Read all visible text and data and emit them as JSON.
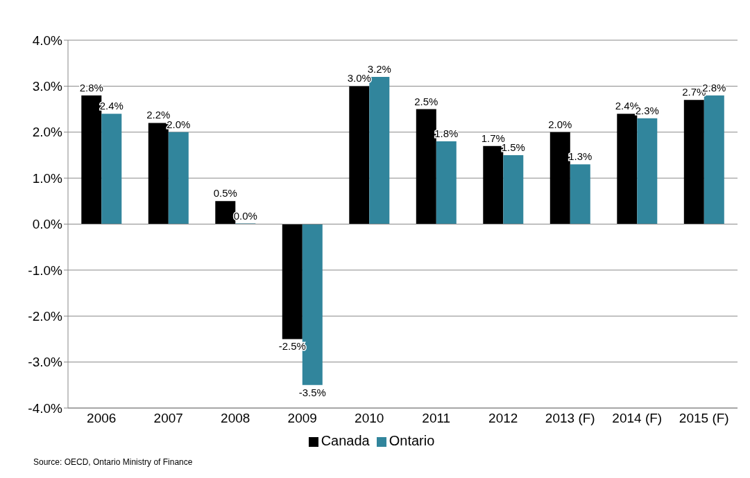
{
  "chart_data": {
    "type": "bar",
    "categories": [
      "2006",
      "2007",
      "2008",
      "2009",
      "2010",
      "2011",
      "2012",
      "2013 (F)",
      "2014 (F)",
      "2015 (F)"
    ],
    "series": [
      {
        "name": "Canada",
        "color": "#000000",
        "values": [
          2.8,
          2.2,
          0.5,
          -2.5,
          3.0,
          2.5,
          1.7,
          2.0,
          2.4,
          2.7
        ],
        "value_labels": [
          "2.8%",
          "2.2%",
          "0.5%",
          "-2.5%",
          "3.0%",
          "2.5%",
          "1.7%",
          "2.0%",
          "2.4%",
          "2.7%"
        ]
      },
      {
        "name": "Ontario",
        "color": "#31859c",
        "values": [
          2.4,
          2.0,
          0.0,
          -3.5,
          3.2,
          1.8,
          1.5,
          1.3,
          2.3,
          2.8
        ],
        "value_labels": [
          "2.4%",
          "2.0%",
          "0.0%",
          "-3.5%",
          "3.2%",
          "1.8%",
          "1.5%",
          "1.3%",
          "2.3%",
          "2.8%"
        ]
      }
    ],
    "ylim": [
      -4,
      4
    ],
    "yticks": [
      {
        "value": -4,
        "label": "-4.0%"
      },
      {
        "value": -3,
        "label": "-3.0%"
      },
      {
        "value": -2,
        "label": "-2.0%"
      },
      {
        "value": -1,
        "label": "-1.0%"
      },
      {
        "value": 0,
        "label": "0.0%"
      },
      {
        "value": 1,
        "label": "1.0%"
      },
      {
        "value": 2,
        "label": "2.0%"
      },
      {
        "value": 3,
        "label": "3.0%"
      },
      {
        "value": 4,
        "label": "4.0%"
      }
    ],
    "grid": "y",
    "legend": "bottom",
    "annotations": [
      "Source: OECD, Ontario Ministry of Finance"
    ]
  }
}
